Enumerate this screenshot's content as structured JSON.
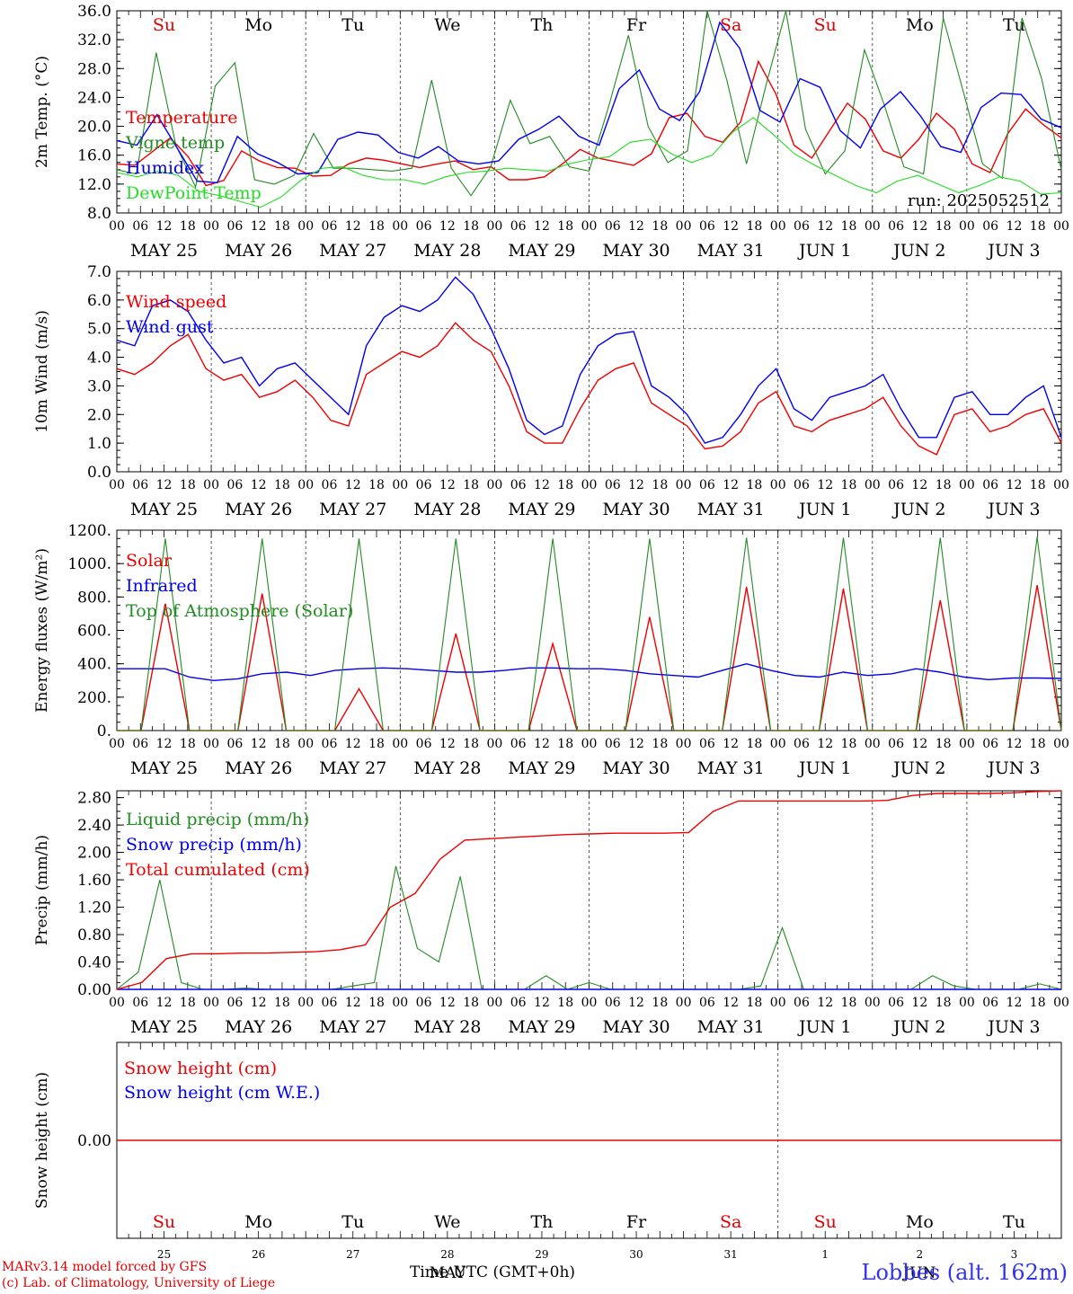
{
  "days": [
    "Su",
    "Mo",
    "Tu",
    "We",
    "Th",
    "Fr",
    "Sa",
    "Su",
    "Mo",
    "Tu"
  ],
  "day_colors": [
    "#e00000",
    "#000000",
    "#000000",
    "#000000",
    "#000000",
    "#000000",
    "#e00000",
    "#e00000",
    "#000000",
    "#000000"
  ],
  "date_labels": [
    "MAY 25",
    "MAY 26",
    "MAY 27",
    "MAY 28",
    "MAY 29",
    "MAY 30",
    "MAY 31",
    "JUN  1",
    "JUN  2",
    "JUN  3"
  ],
  "hour_labels": [
    "00",
    "06",
    "12",
    "18"
  ],
  "hour_label_end": "00",
  "bottom_day_numbers": [
    "25",
    "26",
    "27",
    "28",
    "29",
    "30",
    "31",
    "1",
    "2",
    "3"
  ],
  "bottom_month_labels": [
    "MAY",
    "JUN"
  ],
  "run_label": "run: 2025052512",
  "xlabel": "Time UTC (GMT+0h)",
  "footer_left": [
    "MARv3.14 model forced by GFS",
    "(c) Lab. of Climatology, University of Liege"
  ],
  "footer_right": "Lobbes (alt. 162m)",
  "colors": {
    "red": "#ee0000",
    "green": "#228b22",
    "blue": "#0000ee",
    "lime": "#22dd22",
    "grid": "#444444"
  },
  "chart_data": [
    {
      "type": "line",
      "ylabel": "2m Temp. (°C)",
      "ylim": [
        8,
        36
      ],
      "yticks": [
        8,
        12,
        16,
        20,
        24,
        28,
        32,
        36
      ],
      "ytick_labels": [
        "8.0",
        "12.0",
        "16.0",
        "20.0",
        "24.0",
        "28.0",
        "32.0",
        "36.0"
      ],
      "x_hours_step": 6,
      "series": [
        {
          "name": "Temperature",
          "color": "#ee0000",
          "values": [
            14.8,
            14.6,
            16.5,
            18.4,
            15.8,
            11.8,
            12.5,
            16.6,
            15.2,
            14.3,
            14.2,
            13.1,
            13.2,
            14.8,
            15.6,
            15.3,
            14.8,
            14.3,
            14.8,
            15.2,
            14.0,
            14.4,
            12.6,
            12.6,
            13.0,
            14.8,
            16.8,
            15.6,
            15.1,
            14.6,
            16.2,
            21.2,
            21.8,
            18.6,
            17.8,
            20.6,
            29.0,
            24.4,
            17.4,
            15.6,
            19.4,
            23.2,
            21.0,
            16.6,
            15.6,
            18.2,
            21.8,
            19.6,
            14.8,
            13.6,
            19.0,
            22.4,
            20.2,
            18.4
          ]
        },
        {
          "name": "Vigne temp",
          "color": "#228b22",
          "values": [
            14.0,
            13.4,
            30.2,
            17.4,
            11.6,
            25.6,
            28.8,
            12.6,
            12.0,
            13.2,
            19.0,
            14.2,
            14.2,
            14.0,
            13.8,
            14.2,
            26.4,
            14.2,
            10.4,
            14.4,
            23.6,
            17.6,
            18.6,
            14.4,
            13.8,
            22.8,
            32.6,
            20.0,
            15.0,
            16.6,
            38.0,
            26.4,
            14.8,
            25.8,
            36.8,
            19.6,
            13.4,
            16.6,
            30.6,
            23.0,
            14.4,
            13.4,
            35.0,
            25.0,
            14.8,
            12.8,
            35.0,
            26.6,
            14.0
          ]
        },
        {
          "name": "Humidex",
          "color": "#0000ee",
          "values": [
            18.0,
            17.4,
            21.6,
            17.0,
            12.4,
            12.2,
            18.6,
            16.2,
            15.0,
            13.4,
            13.6,
            18.2,
            19.2,
            18.8,
            16.4,
            15.6,
            17.2,
            15.2,
            14.8,
            15.2,
            18.2,
            19.6,
            21.4,
            18.6,
            17.4,
            25.2,
            27.8,
            22.4,
            20.8,
            24.8,
            34.4,
            30.8,
            22.2,
            20.6,
            26.6,
            25.4,
            19.4,
            17.0,
            22.4,
            24.8,
            21.4,
            17.2,
            16.4,
            22.6,
            24.6,
            24.4,
            21.0,
            19.8
          ]
        },
        {
          "name": "DewPoint Temp",
          "color": "#22dd22",
          "values": [
            13.6,
            13.0,
            13.8,
            13.2,
            11.0,
            10.4,
            9.6,
            8.8,
            10.2,
            12.6,
            14.2,
            14.4,
            13.2,
            12.6,
            12.6,
            12.0,
            13.0,
            13.6,
            13.8,
            14.2,
            14.0,
            13.8,
            14.8,
            15.4,
            15.8,
            17.8,
            18.2,
            16.2,
            15.0,
            16.0,
            19.2,
            21.2,
            18.8,
            16.2,
            14.6,
            13.2,
            11.8,
            10.8,
            12.4,
            13.2,
            12.0,
            10.8,
            11.8,
            13.0,
            12.4,
            10.6,
            10.8
          ]
        }
      ]
    },
    {
      "type": "line",
      "ylabel": "10m Wind (m/s)",
      "ylim": [
        0,
        7
      ],
      "yticks": [
        0,
        1,
        2,
        3,
        4,
        5,
        6,
        7
      ],
      "ytick_labels": [
        "0.0",
        "1.0",
        "2.0",
        "3.0",
        "4.0",
        "5.0",
        "6.0",
        "7.0"
      ],
      "x_hours_step": 6,
      "series": [
        {
          "name": "Wind speed",
          "color": "#ee0000",
          "values": [
            3.6,
            3.4,
            3.8,
            4.4,
            4.8,
            3.6,
            3.2,
            3.4,
            2.6,
            2.8,
            3.2,
            2.6,
            1.8,
            1.6,
            3.4,
            3.8,
            4.2,
            4.0,
            4.4,
            5.2,
            4.6,
            4.2,
            3.0,
            1.4,
            1.0,
            1.0,
            2.2,
            3.2,
            3.6,
            3.8,
            2.4,
            2.0,
            1.6,
            0.8,
            0.9,
            1.4,
            2.4,
            2.8,
            1.6,
            1.4,
            1.8,
            2.0,
            2.2,
            2.6,
            1.6,
            0.9,
            0.6,
            2.0,
            2.2,
            1.4,
            1.6,
            2.0,
            2.2,
            1.0
          ]
        },
        {
          "name": "Wind gust",
          "color": "#0000ee",
          "values": [
            4.6,
            4.4,
            5.8,
            6.0,
            5.6,
            4.6,
            3.8,
            4.0,
            3.0,
            3.6,
            3.8,
            3.2,
            2.6,
            2.0,
            4.4,
            5.4,
            5.8,
            5.6,
            6.0,
            6.8,
            6.2,
            5.0,
            3.6,
            1.8,
            1.3,
            1.6,
            3.4,
            4.4,
            4.8,
            4.9,
            3.0,
            2.6,
            2.0,
            1.0,
            1.2,
            2.0,
            3.0,
            3.6,
            2.2,
            1.8,
            2.6,
            2.8,
            3.0,
            3.4,
            2.2,
            1.2,
            1.2,
            2.6,
            2.8,
            2.0,
            2.0,
            2.6,
            3.0,
            1.2
          ]
        }
      ]
    },
    {
      "type": "line",
      "ylabel": "Energy fluxes (W/m²)",
      "ylim": [
        0,
        1200
      ],
      "yticks": [
        0,
        200,
        400,
        600,
        800,
        1000,
        1200
      ],
      "ytick_labels": [
        "0.",
        "200.",
        "400.",
        "600.",
        "800.",
        "1000.",
        "1200."
      ],
      "x_hours_step": 6,
      "series": [
        {
          "name": "Solar",
          "color": "#ee0000",
          "values": [
            0,
            0,
            760,
            0,
            0,
            0,
            820,
            0,
            0,
            0,
            250,
            0,
            0,
            0,
            580,
            0,
            0,
            0,
            520,
            0,
            0,
            0,
            680,
            0,
            0,
            0,
            860,
            0,
            0,
            0,
            850,
            0,
            0,
            0,
            780,
            0,
            0,
            0,
            870,
            0
          ]
        },
        {
          "name": "Infrared",
          "color": "#0000ee",
          "values": [
            370,
            370,
            370,
            320,
            300,
            310,
            340,
            350,
            330,
            360,
            370,
            375,
            370,
            360,
            350,
            350,
            360,
            375,
            375,
            370,
            370,
            360,
            340,
            330,
            320,
            360,
            400,
            360,
            330,
            320,
            350,
            330,
            340,
            370,
            350,
            320,
            305,
            315,
            315,
            312
          ]
        },
        {
          "name": "Top of Atmosphere (Solar)",
          "color": "#228b22",
          "values": [
            0,
            0,
            1150,
            0,
            0,
            0,
            1150,
            0,
            0,
            0,
            1150,
            0,
            0,
            0,
            1150,
            0,
            0,
            0,
            1150,
            0,
            0,
            0,
            1150,
            0,
            0,
            0,
            1155,
            0,
            0,
            0,
            1155,
            0,
            0,
            0,
            1155,
            0,
            0,
            0,
            1160,
            0
          ]
        }
      ]
    },
    {
      "type": "line",
      "ylabel": "Precip (mm/h)",
      "ylim": [
        0,
        2.9
      ],
      "yticks": [
        0,
        0.4,
        0.8,
        1.2,
        1.6,
        2.0,
        2.4,
        2.8
      ],
      "ytick_labels": [
        "0.00",
        "0.40",
        "0.80",
        "1.20",
        "1.60",
        "2.00",
        "2.40",
        "2.80"
      ],
      "x_hours_step": 6,
      "series": [
        {
          "name": "Liquid precip (mm/h)",
          "color": "#228b22",
          "values": [
            0,
            0.25,
            1.6,
            0.1,
            0,
            0,
            0.02,
            0,
            0,
            0,
            0,
            0.05,
            0.1,
            1.8,
            0.6,
            0.4,
            1.65,
            0,
            0,
            0,
            0.2,
            0,
            0.1,
            0,
            0,
            0,
            0,
            0,
            0,
            0,
            0.05,
            0.9,
            0,
            0,
            0,
            0,
            0,
            0,
            0.2,
            0.05,
            0,
            0,
            0,
            0.08,
            0
          ]
        },
        {
          "name": "Snow precip (mm/h)",
          "color": "#0000ee",
          "values": [
            0,
            0,
            0,
            0,
            0,
            0,
            0,
            0,
            0,
            0,
            0,
            0,
            0,
            0,
            0,
            0,
            0,
            0,
            0,
            0,
            0,
            0,
            0,
            0,
            0,
            0,
            0,
            0,
            0,
            0,
            0,
            0,
            0,
            0,
            0,
            0,
            0,
            0,
            0,
            0,
            0
          ]
        },
        {
          "name": "Total cumulated (cm)",
          "color": "#ee0000",
          "values": [
            0,
            0.1,
            0.45,
            0.52,
            0.52,
            0.53,
            0.53,
            0.54,
            0.55,
            0.58,
            0.65,
            1.2,
            1.4,
            1.9,
            2.18,
            2.2,
            2.22,
            2.24,
            2.26,
            2.27,
            2.28,
            2.28,
            2.28,
            2.29,
            2.6,
            2.75,
            2.75,
            2.75,
            2.75,
            2.75,
            2.75,
            2.76,
            2.83,
            2.86,
            2.86,
            2.86,
            2.87,
            2.89,
            2.9
          ]
        }
      ]
    },
    {
      "type": "line",
      "ylabel": "Snow height (cm)",
      "ylim": [
        -1,
        1
      ],
      "yticks": [
        0
      ],
      "ytick_labels": [
        "0.00"
      ],
      "x_hours_step": 6,
      "series": [
        {
          "name": "Snow height (cm)",
          "color": "#ee0000",
          "values": [
            0,
            0
          ]
        },
        {
          "name": "Snow height (cm W.E.)",
          "color": "#0000ee",
          "values": []
        }
      ]
    }
  ]
}
